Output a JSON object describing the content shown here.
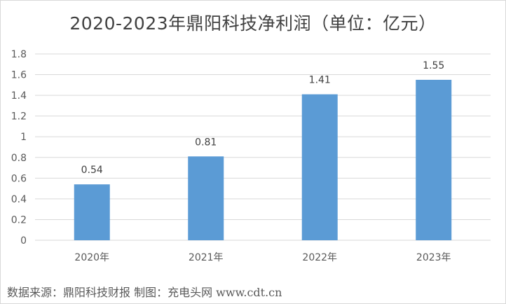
{
  "chart_data": {
    "type": "bar",
    "title": "2020-2023年鼎阳科技净利润（单位：亿元）",
    "categories": [
      "2020年",
      "2021年",
      "2022年",
      "2023年"
    ],
    "values": [
      0.54,
      0.81,
      1.41,
      1.55
    ],
    "data_labels": [
      "0.54",
      "0.81",
      "1.41",
      "1.55"
    ],
    "ylim": [
      0,
      1.8
    ],
    "yticks": [
      "0",
      "0.2",
      "0.4",
      "0.6",
      "0.8",
      "1",
      "1.2",
      "1.4",
      "1.6",
      "1.8"
    ],
    "grid": true,
    "legend": "none",
    "bar_color": "#5b9bd5",
    "grid_color": "#d9d9d9"
  },
  "footer": {
    "source_text": "数据来源：鼎阳科技财报   制图：充电头网 www.cdt.cn"
  }
}
